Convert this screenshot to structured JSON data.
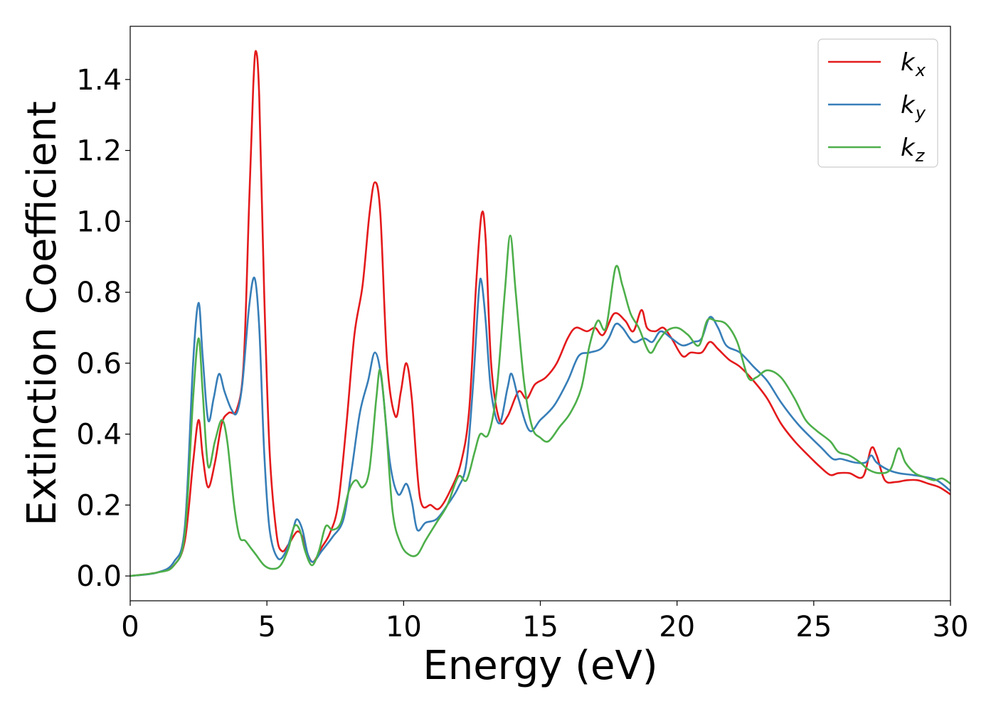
{
  "chart_data": {
    "type": "line",
    "title": "",
    "xlabel": "Energy (eV)",
    "ylabel": "Extinction Coefficient",
    "xlim": [
      0,
      30
    ],
    "ylim": [
      -0.07,
      1.55
    ],
    "xticks": [
      0,
      5,
      10,
      15,
      20,
      25,
      30
    ],
    "xtick_labels": [
      "0",
      "5",
      "10",
      "15",
      "20",
      "25",
      "30"
    ],
    "yticks": [
      0.0,
      0.2,
      0.4,
      0.6,
      0.8,
      1.0,
      1.2,
      1.4
    ],
    "ytick_labels": [
      "0.0",
      "0.2",
      "0.4",
      "0.6",
      "0.8",
      "1.0",
      "1.2",
      "1.4"
    ],
    "grid": false,
    "legend_position": "top-right",
    "series": [
      {
        "name": "k_x",
        "label_main": "k",
        "label_sub": "x",
        "color": "#e41a1c",
        "points": [
          [
            0,
            0
          ],
          [
            1.0,
            0.01
          ],
          [
            1.6,
            0.03
          ],
          [
            2.0,
            0.1
          ],
          [
            2.3,
            0.32
          ],
          [
            2.5,
            0.44
          ],
          [
            2.65,
            0.34
          ],
          [
            2.85,
            0.25
          ],
          [
            3.1,
            0.32
          ],
          [
            3.35,
            0.43
          ],
          [
            3.6,
            0.46
          ],
          [
            3.9,
            0.47
          ],
          [
            4.15,
            0.6
          ],
          [
            4.35,
            1.05
          ],
          [
            4.5,
            1.38
          ],
          [
            4.6,
            1.48
          ],
          [
            4.72,
            1.35
          ],
          [
            4.9,
            0.8
          ],
          [
            5.1,
            0.35
          ],
          [
            5.35,
            0.12
          ],
          [
            5.55,
            0.07
          ],
          [
            5.8,
            0.09
          ],
          [
            6.1,
            0.125
          ],
          [
            6.3,
            0.11
          ],
          [
            6.5,
            0.06
          ],
          [
            6.7,
            0.04
          ],
          [
            7.0,
            0.08
          ],
          [
            7.3,
            0.12
          ],
          [
            7.6,
            0.2
          ],
          [
            7.9,
            0.42
          ],
          [
            8.2,
            0.68
          ],
          [
            8.5,
            0.82
          ],
          [
            8.75,
            1.02
          ],
          [
            8.95,
            1.11
          ],
          [
            9.15,
            1.02
          ],
          [
            9.4,
            0.6
          ],
          [
            9.7,
            0.45
          ],
          [
            9.9,
            0.52
          ],
          [
            10.1,
            0.6
          ],
          [
            10.3,
            0.5
          ],
          [
            10.6,
            0.22
          ],
          [
            11.0,
            0.2
          ],
          [
            11.3,
            0.19
          ],
          [
            11.7,
            0.24
          ],
          [
            12.1,
            0.32
          ],
          [
            12.4,
            0.47
          ],
          [
            12.65,
            0.82
          ],
          [
            12.85,
            1.02
          ],
          [
            13.0,
            0.95
          ],
          [
            13.2,
            0.6
          ],
          [
            13.5,
            0.44
          ],
          [
            13.8,
            0.45
          ],
          [
            14.2,
            0.52
          ],
          [
            14.5,
            0.5
          ],
          [
            14.8,
            0.54
          ],
          [
            15.2,
            0.56
          ],
          [
            15.6,
            0.6
          ],
          [
            16.0,
            0.67
          ],
          [
            16.3,
            0.7
          ],
          [
            16.7,
            0.69
          ],
          [
            17.0,
            0.7
          ],
          [
            17.3,
            0.68
          ],
          [
            17.7,
            0.74
          ],
          [
            18.1,
            0.72
          ],
          [
            18.4,
            0.69
          ],
          [
            18.7,
            0.75
          ],
          [
            18.9,
            0.7
          ],
          [
            19.2,
            0.69
          ],
          [
            19.5,
            0.7
          ],
          [
            19.8,
            0.67
          ],
          [
            20.2,
            0.62
          ],
          [
            20.5,
            0.63
          ],
          [
            20.9,
            0.63
          ],
          [
            21.2,
            0.66
          ],
          [
            21.5,
            0.64
          ],
          [
            21.9,
            0.61
          ],
          [
            22.3,
            0.59
          ],
          [
            22.8,
            0.55
          ],
          [
            23.3,
            0.5
          ],
          [
            23.8,
            0.43
          ],
          [
            24.3,
            0.38
          ],
          [
            24.8,
            0.34
          ],
          [
            25.2,
            0.31
          ],
          [
            25.6,
            0.285
          ],
          [
            25.9,
            0.29
          ],
          [
            26.3,
            0.29
          ],
          [
            26.8,
            0.28
          ],
          [
            27.1,
            0.36
          ],
          [
            27.3,
            0.34
          ],
          [
            27.6,
            0.27
          ],
          [
            28.0,
            0.265
          ],
          [
            28.4,
            0.27
          ],
          [
            28.8,
            0.27
          ],
          [
            29.2,
            0.26
          ],
          [
            29.6,
            0.25
          ],
          [
            30,
            0.23
          ]
        ]
      },
      {
        "name": "k_y",
        "label_main": "k",
        "label_sub": "y",
        "color": "#377eb8",
        "points": [
          [
            0,
            0
          ],
          [
            1.0,
            0.01
          ],
          [
            1.6,
            0.04
          ],
          [
            2.0,
            0.14
          ],
          [
            2.3,
            0.6
          ],
          [
            2.5,
            0.77
          ],
          [
            2.65,
            0.62
          ],
          [
            2.85,
            0.44
          ],
          [
            3.05,
            0.5
          ],
          [
            3.25,
            0.57
          ],
          [
            3.45,
            0.52
          ],
          [
            3.7,
            0.47
          ],
          [
            3.9,
            0.46
          ],
          [
            4.1,
            0.54
          ],
          [
            4.35,
            0.76
          ],
          [
            4.55,
            0.84
          ],
          [
            4.72,
            0.7
          ],
          [
            4.9,
            0.35
          ],
          [
            5.1,
            0.13
          ],
          [
            5.4,
            0.05
          ],
          [
            5.7,
            0.07
          ],
          [
            5.95,
            0.13
          ],
          [
            6.1,
            0.16
          ],
          [
            6.3,
            0.13
          ],
          [
            6.5,
            0.06
          ],
          [
            6.7,
            0.04
          ],
          [
            7.0,
            0.07
          ],
          [
            7.4,
            0.11
          ],
          [
            7.8,
            0.16
          ],
          [
            8.1,
            0.3
          ],
          [
            8.4,
            0.46
          ],
          [
            8.7,
            0.55
          ],
          [
            8.95,
            0.63
          ],
          [
            9.2,
            0.55
          ],
          [
            9.5,
            0.32
          ],
          [
            9.8,
            0.23
          ],
          [
            10.1,
            0.26
          ],
          [
            10.3,
            0.21
          ],
          [
            10.5,
            0.13
          ],
          [
            10.8,
            0.15
          ],
          [
            11.2,
            0.16
          ],
          [
            11.6,
            0.2
          ],
          [
            12.0,
            0.25
          ],
          [
            12.3,
            0.32
          ],
          [
            12.55,
            0.55
          ],
          [
            12.75,
            0.8
          ],
          [
            12.85,
            0.83
          ],
          [
            13.0,
            0.72
          ],
          [
            13.2,
            0.52
          ],
          [
            13.5,
            0.43
          ],
          [
            13.8,
            0.53
          ],
          [
            13.95,
            0.57
          ],
          [
            14.2,
            0.5
          ],
          [
            14.6,
            0.41
          ],
          [
            15.0,
            0.44
          ],
          [
            15.5,
            0.48
          ],
          [
            16.0,
            0.55
          ],
          [
            16.4,
            0.62
          ],
          [
            16.8,
            0.63
          ],
          [
            17.2,
            0.64
          ],
          [
            17.5,
            0.67
          ],
          [
            17.75,
            0.71
          ],
          [
            18.0,
            0.7
          ],
          [
            18.4,
            0.66
          ],
          [
            18.8,
            0.67
          ],
          [
            19.1,
            0.66
          ],
          [
            19.4,
            0.69
          ],
          [
            19.8,
            0.67
          ],
          [
            20.2,
            0.65
          ],
          [
            20.6,
            0.66
          ],
          [
            20.9,
            0.67
          ],
          [
            21.2,
            0.73
          ],
          [
            21.5,
            0.7
          ],
          [
            21.8,
            0.65
          ],
          [
            22.3,
            0.63
          ],
          [
            22.8,
            0.59
          ],
          [
            23.3,
            0.55
          ],
          [
            23.8,
            0.49
          ],
          [
            24.4,
            0.43
          ],
          [
            24.9,
            0.39
          ],
          [
            25.3,
            0.36
          ],
          [
            25.7,
            0.33
          ],
          [
            26.0,
            0.33
          ],
          [
            26.5,
            0.32
          ],
          [
            26.9,
            0.32
          ],
          [
            27.1,
            0.34
          ],
          [
            27.3,
            0.32
          ],
          [
            27.7,
            0.3
          ],
          [
            28.1,
            0.29
          ],
          [
            28.6,
            0.285
          ],
          [
            29.0,
            0.28
          ],
          [
            29.5,
            0.27
          ],
          [
            30,
            0.24
          ]
        ]
      },
      {
        "name": "k_z",
        "label_main": "k",
        "label_sub": "z",
        "color": "#4daf4a",
        "points": [
          [
            0,
            0
          ],
          [
            1.0,
            0.01
          ],
          [
            1.6,
            0.03
          ],
          [
            2.0,
            0.12
          ],
          [
            2.3,
            0.5
          ],
          [
            2.5,
            0.67
          ],
          [
            2.65,
            0.52
          ],
          [
            2.85,
            0.31
          ],
          [
            3.1,
            0.38
          ],
          [
            3.35,
            0.44
          ],
          [
            3.55,
            0.38
          ],
          [
            3.8,
            0.2
          ],
          [
            4.0,
            0.11
          ],
          [
            4.2,
            0.1
          ],
          [
            4.4,
            0.08
          ],
          [
            4.6,
            0.06
          ],
          [
            4.9,
            0.03
          ],
          [
            5.2,
            0.02
          ],
          [
            5.5,
            0.03
          ],
          [
            5.8,
            0.08
          ],
          [
            6.0,
            0.14
          ],
          [
            6.2,
            0.13
          ],
          [
            6.4,
            0.07
          ],
          [
            6.65,
            0.03
          ],
          [
            6.9,
            0.07
          ],
          [
            7.15,
            0.14
          ],
          [
            7.4,
            0.13
          ],
          [
            7.7,
            0.15
          ],
          [
            8.0,
            0.24
          ],
          [
            8.25,
            0.27
          ],
          [
            8.5,
            0.25
          ],
          [
            8.75,
            0.3
          ],
          [
            9.0,
            0.5
          ],
          [
            9.15,
            0.58
          ],
          [
            9.35,
            0.43
          ],
          [
            9.6,
            0.18
          ],
          [
            9.9,
            0.09
          ],
          [
            10.2,
            0.06
          ],
          [
            10.5,
            0.06
          ],
          [
            10.8,
            0.1
          ],
          [
            11.2,
            0.15
          ],
          [
            11.6,
            0.2
          ],
          [
            12.0,
            0.28
          ],
          [
            12.3,
            0.27
          ],
          [
            12.6,
            0.35
          ],
          [
            12.8,
            0.4
          ],
          [
            13.1,
            0.4
          ],
          [
            13.4,
            0.52
          ],
          [
            13.7,
            0.8
          ],
          [
            13.9,
            0.96
          ],
          [
            14.1,
            0.8
          ],
          [
            14.4,
            0.55
          ],
          [
            14.7,
            0.42
          ],
          [
            15.0,
            0.39
          ],
          [
            15.3,
            0.38
          ],
          [
            15.7,
            0.42
          ],
          [
            16.1,
            0.46
          ],
          [
            16.5,
            0.53
          ],
          [
            16.8,
            0.65
          ],
          [
            17.1,
            0.72
          ],
          [
            17.4,
            0.7
          ],
          [
            17.75,
            0.87
          ],
          [
            18.0,
            0.82
          ],
          [
            18.3,
            0.74
          ],
          [
            18.6,
            0.7
          ],
          [
            19.0,
            0.63
          ],
          [
            19.3,
            0.66
          ],
          [
            19.6,
            0.69
          ],
          [
            20.0,
            0.7
          ],
          [
            20.4,
            0.68
          ],
          [
            20.8,
            0.65
          ],
          [
            21.1,
            0.72
          ],
          [
            21.4,
            0.72
          ],
          [
            21.8,
            0.71
          ],
          [
            22.2,
            0.66
          ],
          [
            22.6,
            0.56
          ],
          [
            22.9,
            0.56
          ],
          [
            23.3,
            0.58
          ],
          [
            23.8,
            0.56
          ],
          [
            24.3,
            0.5
          ],
          [
            24.7,
            0.44
          ],
          [
            25.1,
            0.41
          ],
          [
            25.6,
            0.38
          ],
          [
            25.9,
            0.35
          ],
          [
            26.3,
            0.34
          ],
          [
            26.7,
            0.32
          ],
          [
            27.0,
            0.3
          ],
          [
            27.4,
            0.29
          ],
          [
            27.8,
            0.3
          ],
          [
            28.1,
            0.36
          ],
          [
            28.35,
            0.32
          ],
          [
            28.7,
            0.29
          ],
          [
            29.0,
            0.28
          ],
          [
            29.4,
            0.27
          ],
          [
            29.7,
            0.275
          ],
          [
            30,
            0.26
          ]
        ]
      }
    ]
  }
}
